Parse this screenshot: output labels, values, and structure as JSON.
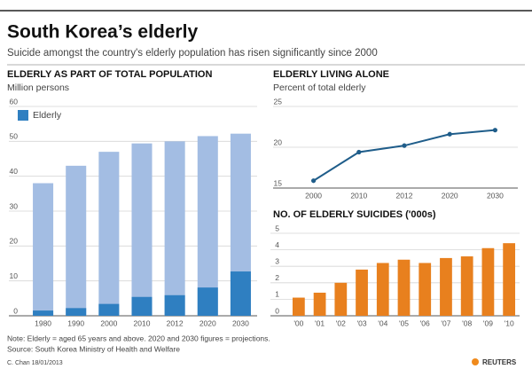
{
  "header": {
    "title": "South Korea’s elderly",
    "subtitle": "Suicide amongst the country's elderly population has risen significantly since 2000"
  },
  "chart_data": [
    {
      "type": "bar",
      "title": "ELDERLY AS PART OF TOTAL POPULATION",
      "subtitle": "Million persons",
      "categories": [
        "1980",
        "1990",
        "2000",
        "2010",
        "2012",
        "2020",
        "2030"
      ],
      "series": [
        {
          "color": "#a3bde3",
          "values": [
            38,
            43,
            47,
            49.4,
            50,
            51.5,
            52.2
          ]
        },
        {
          "name": "Elderly",
          "color": "#2f7fc1",
          "values": [
            1.5,
            2.2,
            3.4,
            5.4,
            5.9,
            8.1,
            12.7
          ]
        }
      ],
      "ylim": [
        0,
        60
      ],
      "yticks": [
        0,
        10,
        20,
        30,
        40,
        50,
        60
      ],
      "grid": true,
      "legend": "top-left"
    },
    {
      "type": "line",
      "title": "ELDERLY LIVING ALONE",
      "subtitle": "Percent of total elderly",
      "categories": [
        "2000",
        "2010",
        "2012",
        "2020",
        "2030"
      ],
      "values": [
        15.9,
        19.4,
        20.2,
        21.6,
        22.1
      ],
      "color": "#1f5d8a",
      "ylim": [
        15,
        25
      ],
      "yticks": [
        15,
        20,
        25
      ],
      "grid": true
    },
    {
      "type": "bar",
      "title": "NO. OF ELDERLY SUICIDES ('000s)",
      "categories": [
        "'00",
        "'01",
        "'02",
        "'03",
        "'04",
        "'05",
        "'06",
        "'07",
        "'08",
        "'09",
        "'10"
      ],
      "values": [
        1.1,
        1.4,
        2.0,
        2.8,
        3.2,
        3.4,
        3.2,
        3.5,
        3.6,
        4.1,
        4.4
      ],
      "color": "#e8801e",
      "ylim": [
        0,
        5
      ],
      "yticks": [
        0,
        1,
        2,
        3,
        4,
        5
      ],
      "grid": true
    }
  ],
  "notes": [
    "Note: Elderly = aged 65 years and above. 2020 and 2030 figures = projections.",
    "Source: South Korea Ministry of Health and Welfare"
  ],
  "credit": "C. Chan 18/01/2013",
  "logo": "REUTERS"
}
